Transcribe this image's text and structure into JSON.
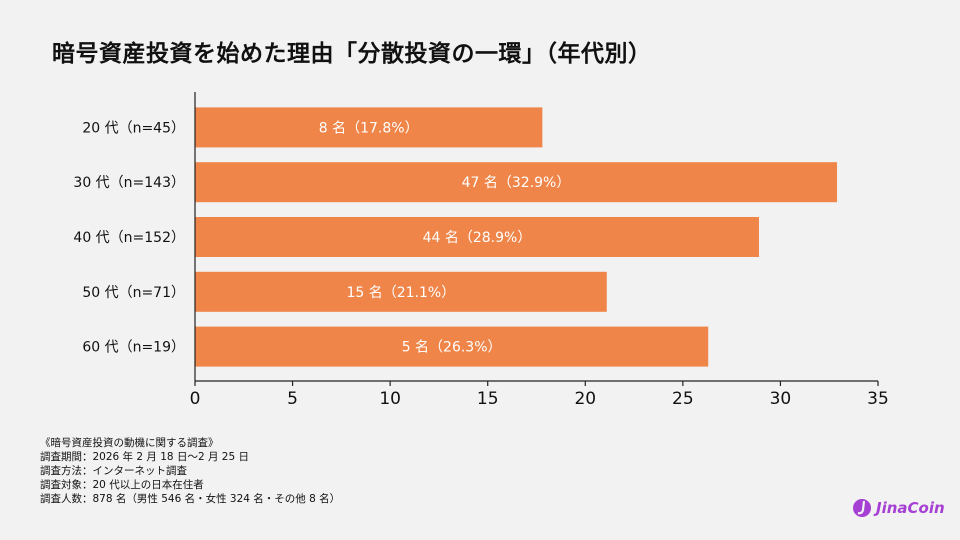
{
  "title": "暗号資産投資を始めた理由「分散投資の一環」（年代別）",
  "chart_data": {
    "type": "bar",
    "orientation": "horizontal",
    "title": "暗号資産投資を始めた理由「分散投資の一環」（年代別）",
    "categories": [
      "20 代（n=45）",
      "30 代（n=143）",
      "40 代（n=152）",
      "50 代（n=71）",
      "60 代（n=19）"
    ],
    "values": [
      17.8,
      32.9,
      28.9,
      21.1,
      26.3
    ],
    "data_labels": [
      "8 名（17.8%）",
      "47 名（32.9%）",
      "44 名（28.9%）",
      "15 名（21.1%）",
      "5 名（26.3%）"
    ],
    "xlim": [
      0,
      35
    ],
    "xticks": [
      0,
      5,
      10,
      15,
      20,
      25,
      30,
      35
    ],
    "grid": false,
    "bar_color": "#ef8548",
    "label_color": "#ffffff"
  },
  "notes": [
    "《暗号資産投資の動機に関する調査》",
    "調査期間：2026 年 2 月 18 日〜2 月 25 日",
    "調査方法：インターネット調査",
    "調査対象：20 代以上の日本在住者",
    "調査人数：878 名（男性 546 名・女性 324 名・その他 8 名）"
  ],
  "logo": {
    "text": "JinaCoin",
    "color": "#a63fd3",
    "icon": "jinacoin-logo-icon"
  }
}
